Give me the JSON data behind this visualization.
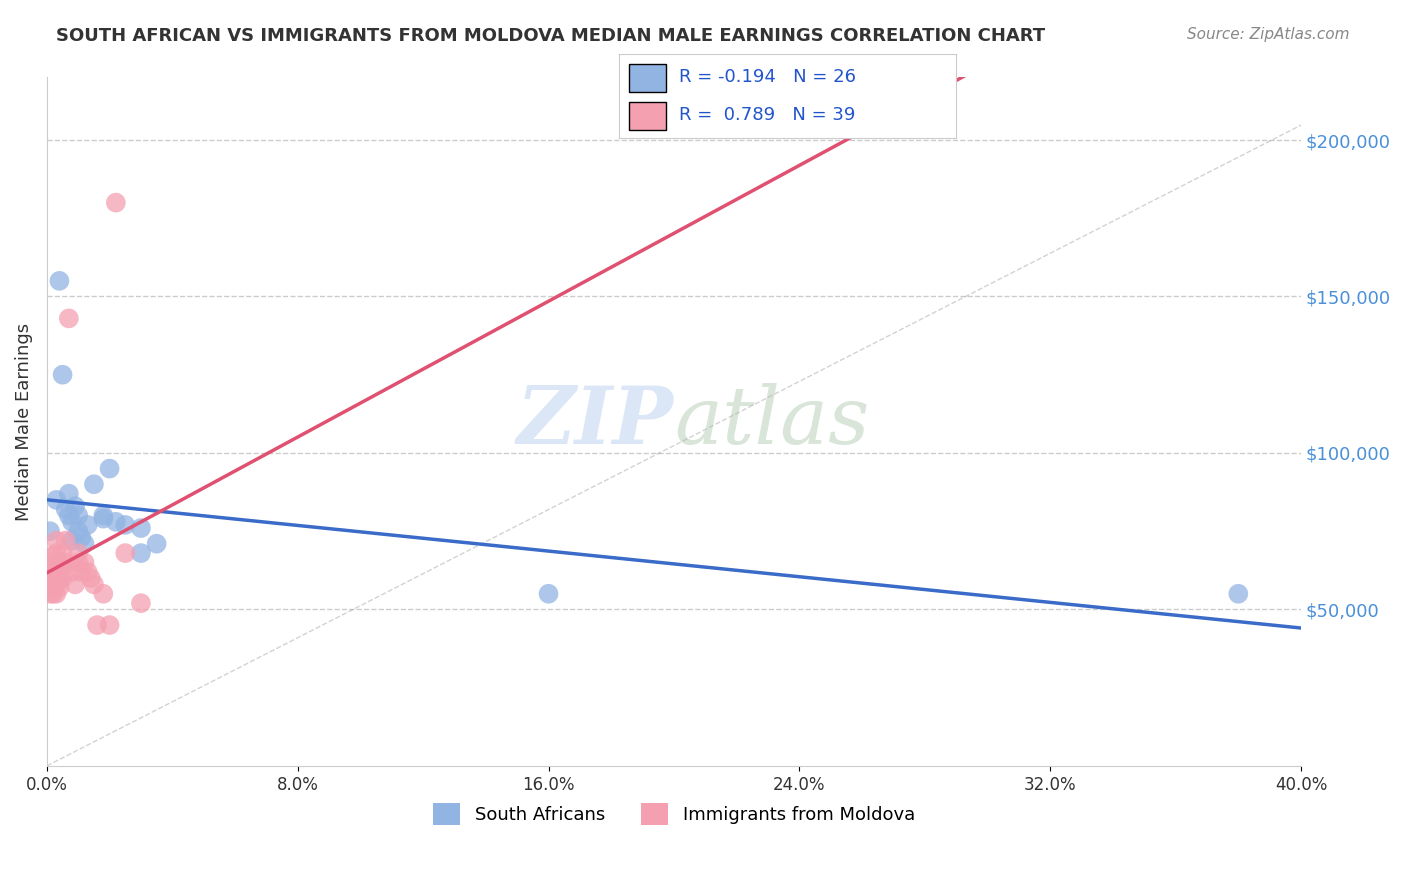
{
  "title": "SOUTH AFRICAN VS IMMIGRANTS FROM MOLDOVA MEDIAN MALE EARNINGS CORRELATION CHART",
  "source": "Source: ZipAtlas.com",
  "ylabel": "Median Male Earnings",
  "y_ticks": [
    0,
    50000,
    100000,
    150000,
    200000
  ],
  "y_tick_labels": [
    "",
    "$50,000",
    "$100,000",
    "$150,000",
    "$200,000"
  ],
  "xmin": 0.0,
  "xmax": 0.4,
  "ymin": 0,
  "ymax": 220000,
  "watermark_zip": "ZIP",
  "watermark_atlas": "atlas",
  "legend_blue_r": "-0.194",
  "legend_blue_n": "26",
  "legend_pink_r": " 0.789",
  "legend_pink_n": "39",
  "blue_color": "#92B4E3",
  "pink_color": "#F4A0B0",
  "blue_line_color": "#3A6BC8",
  "pink_line_color": "#E05070",
  "blue_scatter": [
    [
      0.001,
      75000
    ],
    [
      0.003,
      85000
    ],
    [
      0.004,
      155000
    ],
    [
      0.005,
      125000
    ],
    [
      0.006,
      82000
    ],
    [
      0.007,
      80000
    ],
    [
      0.007,
      87000
    ],
    [
      0.008,
      78000
    ],
    [
      0.008,
      72000
    ],
    [
      0.009,
      83000
    ],
    [
      0.01,
      80000
    ],
    [
      0.01,
      75000
    ],
    [
      0.011,
      73000
    ],
    [
      0.012,
      71000
    ],
    [
      0.013,
      77000
    ],
    [
      0.015,
      90000
    ],
    [
      0.018,
      80000
    ],
    [
      0.018,
      79000
    ],
    [
      0.02,
      95000
    ],
    [
      0.022,
      78000
    ],
    [
      0.025,
      77000
    ],
    [
      0.03,
      68000
    ],
    [
      0.03,
      76000
    ],
    [
      0.035,
      71000
    ],
    [
      0.16,
      55000
    ],
    [
      0.38,
      55000
    ]
  ],
  "pink_scatter": [
    [
      0.001,
      65000
    ],
    [
      0.001,
      60000
    ],
    [
      0.001,
      58000
    ],
    [
      0.001,
      55000
    ],
    [
      0.002,
      67000
    ],
    [
      0.002,
      63000
    ],
    [
      0.002,
      60000
    ],
    [
      0.002,
      57000
    ],
    [
      0.002,
      55000
    ],
    [
      0.003,
      72000
    ],
    [
      0.003,
      68000
    ],
    [
      0.003,
      62000
    ],
    [
      0.003,
      58000
    ],
    [
      0.003,
      55000
    ],
    [
      0.004,
      65000
    ],
    [
      0.004,
      62000
    ],
    [
      0.004,
      60000
    ],
    [
      0.004,
      57000
    ],
    [
      0.005,
      68000
    ],
    [
      0.005,
      63000
    ],
    [
      0.005,
      60000
    ],
    [
      0.006,
      72000
    ],
    [
      0.006,
      65000
    ],
    [
      0.007,
      143000
    ],
    [
      0.008,
      62000
    ],
    [
      0.009,
      58000
    ],
    [
      0.01,
      68000
    ],
    [
      0.01,
      65000
    ],
    [
      0.011,
      62000
    ],
    [
      0.012,
      65000
    ],
    [
      0.013,
      62000
    ],
    [
      0.014,
      60000
    ],
    [
      0.015,
      58000
    ],
    [
      0.016,
      45000
    ],
    [
      0.018,
      55000
    ],
    [
      0.02,
      45000
    ],
    [
      0.022,
      180000
    ],
    [
      0.025,
      68000
    ],
    [
      0.03,
      52000
    ]
  ],
  "background_color": "#ffffff",
  "grid_color": "#cccccc"
}
